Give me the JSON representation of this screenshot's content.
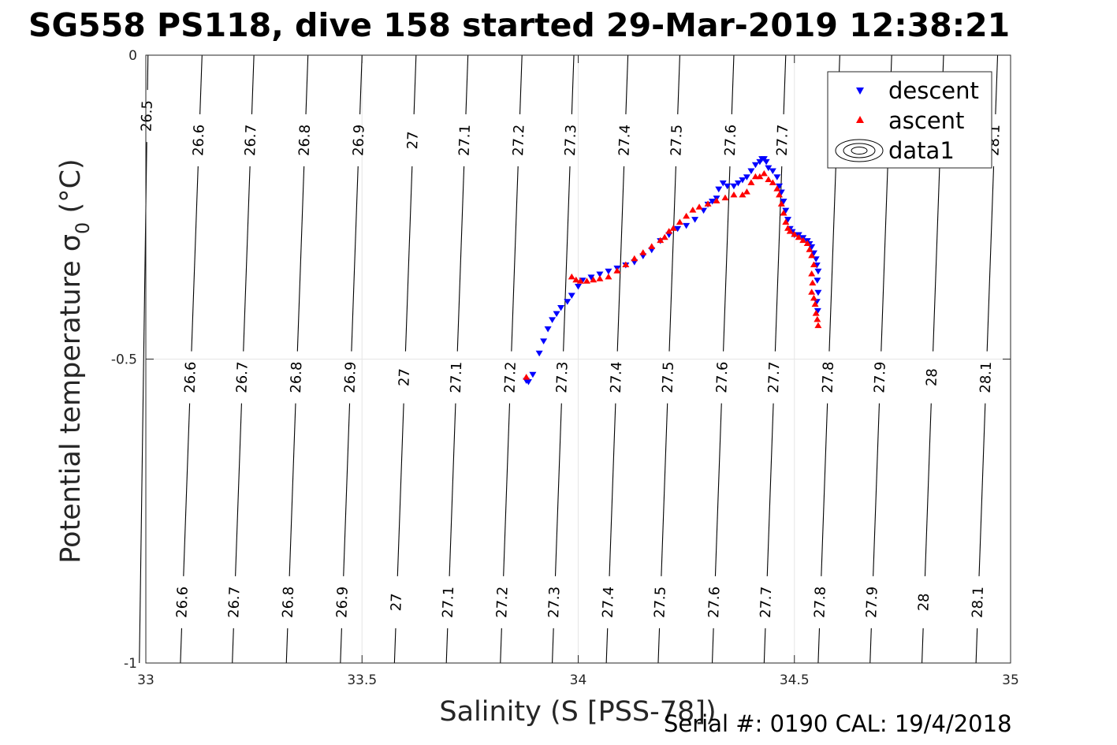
{
  "chart_data": {
    "type": "scatter",
    "title": "SG558 PS118, dive 158 started 29-Mar-2019 12:38:21",
    "xlabel": "Salinity (S [PSS-78])",
    "ylabel_main": "Potential temperature σ",
    "ylabel_sub": "0",
    "ylabel_unit": " (°C)",
    "xlim": [
      33,
      35
    ],
    "ylim": [
      -1,
      0
    ],
    "xticks": [
      33,
      33.5,
      34,
      34.5,
      35
    ],
    "xtick_labels": [
      "33",
      "33.5",
      "34",
      "34.5",
      "35"
    ],
    "yticks": [
      0,
      -0.5,
      -1
    ],
    "ytick_labels": [
      "0",
      "-0.5",
      "-1"
    ],
    "grid": true,
    "legend_position": "top-right",
    "legend": [
      {
        "label": "descent",
        "marker": "triangle-down",
        "color": "#0000ff"
      },
      {
        "label": "ascent",
        "marker": "triangle-up",
        "color": "#ff0000"
      },
      {
        "label": "data1",
        "marker": "contour"
      }
    ],
    "contours": [
      {
        "level": "26.5",
        "s_top": 33.005,
        "s_bottom": 32.985,
        "labels_y": [
          -0.1
        ]
      },
      {
        "level": "26.6",
        "s_top": 33.13,
        "s_bottom": 33.08,
        "labels_y": [
          -0.14,
          -0.53,
          -0.9
        ]
      },
      {
        "level": "26.7",
        "s_top": 33.25,
        "s_bottom": 33.2,
        "labels_y": [
          -0.14,
          -0.53,
          -0.9
        ]
      },
      {
        "level": "26.8",
        "s_top": 33.375,
        "s_bottom": 33.325,
        "labels_y": [
          -0.14,
          -0.53,
          -0.9
        ]
      },
      {
        "level": "26.9",
        "s_top": 33.5,
        "s_bottom": 33.45,
        "labels_y": [
          -0.14,
          -0.53,
          -0.9
        ]
      },
      {
        "level": "27",
        "s_top": 33.625,
        "s_bottom": 33.575,
        "labels_y": [
          -0.14,
          -0.53,
          -0.9
        ]
      },
      {
        "level": "27.1",
        "s_top": 33.745,
        "s_bottom": 33.695,
        "labels_y": [
          -0.14,
          -0.53,
          -0.9
        ]
      },
      {
        "level": "27.2",
        "s_top": 33.87,
        "s_bottom": 33.82,
        "labels_y": [
          -0.14,
          -0.53,
          -0.9
        ]
      },
      {
        "level": "27.3",
        "s_top": 33.99,
        "s_bottom": 33.94,
        "labels_y": [
          -0.14,
          -0.53,
          -0.9
        ]
      },
      {
        "level": "27.4",
        "s_top": 34.115,
        "s_bottom": 34.065,
        "labels_y": [
          -0.14,
          -0.53,
          -0.9
        ]
      },
      {
        "level": "27.5",
        "s_top": 34.235,
        "s_bottom": 34.185,
        "labels_y": [
          -0.14,
          -0.53,
          -0.9
        ]
      },
      {
        "level": "27.6",
        "s_top": 34.36,
        "s_bottom": 34.31,
        "labels_y": [
          -0.14,
          -0.53,
          -0.9
        ]
      },
      {
        "level": "27.7",
        "s_top": 34.48,
        "s_bottom": 34.43,
        "labels_y": [
          -0.14,
          -0.53,
          -0.9
        ]
      },
      {
        "level": "27.8",
        "s_top": 34.605,
        "s_bottom": 34.555,
        "labels_y": [
          -0.53,
          -0.9
        ]
      },
      {
        "level": "27.9",
        "s_top": 34.725,
        "s_bottom": 34.675,
        "labels_y": [
          -0.53,
          -0.9
        ]
      },
      {
        "level": "28",
        "s_top": 34.845,
        "s_bottom": 34.795,
        "labels_y": [
          -0.53,
          -0.9
        ]
      },
      {
        "level": "28.1",
        "s_top": 34.97,
        "s_bottom": 34.92,
        "labels_y": [
          -0.14,
          -0.53,
          -0.9
        ]
      }
    ],
    "series": [
      {
        "name": "descent",
        "color": "#0000ff",
        "marker": "triangle-down",
        "points": [
          [
            33.88,
            -0.535
          ],
          [
            33.885,
            -0.537
          ],
          [
            33.895,
            -0.525
          ],
          [
            33.91,
            -0.49
          ],
          [
            33.92,
            -0.47
          ],
          [
            33.93,
            -0.45
          ],
          [
            33.94,
            -0.435
          ],
          [
            33.95,
            -0.425
          ],
          [
            33.96,
            -0.415
          ],
          [
            33.975,
            -0.405
          ],
          [
            33.985,
            -0.395
          ],
          [
            34.0,
            -0.38
          ],
          [
            34.01,
            -0.37
          ],
          [
            34.03,
            -0.365
          ],
          [
            34.05,
            -0.36
          ],
          [
            34.07,
            -0.355
          ],
          [
            34.09,
            -0.35
          ],
          [
            34.11,
            -0.345
          ],
          [
            34.13,
            -0.34
          ],
          [
            34.15,
            -0.33
          ],
          [
            34.17,
            -0.32
          ],
          [
            34.19,
            -0.305
          ],
          [
            34.21,
            -0.295
          ],
          [
            34.23,
            -0.285
          ],
          [
            34.25,
            -0.28
          ],
          [
            34.27,
            -0.27
          ],
          [
            34.29,
            -0.255
          ],
          [
            34.3,
            -0.245
          ],
          [
            34.31,
            -0.24
          ],
          [
            34.32,
            -0.235
          ],
          [
            34.325,
            -0.22
          ],
          [
            34.335,
            -0.21
          ],
          [
            34.345,
            -0.215
          ],
          [
            34.36,
            -0.215
          ],
          [
            34.37,
            -0.21
          ],
          [
            34.38,
            -0.205
          ],
          [
            34.39,
            -0.2
          ],
          [
            34.4,
            -0.19
          ],
          [
            34.41,
            -0.18
          ],
          [
            34.42,
            -0.175
          ],
          [
            34.425,
            -0.17
          ],
          [
            34.43,
            -0.17
          ],
          [
            34.435,
            -0.175
          ],
          [
            34.44,
            -0.185
          ],
          [
            34.45,
            -0.19
          ],
          [
            34.46,
            -0.2
          ],
          [
            34.465,
            -0.215
          ],
          [
            34.47,
            -0.225
          ],
          [
            34.475,
            -0.24
          ],
          [
            34.48,
            -0.255
          ],
          [
            34.485,
            -0.27
          ],
          [
            34.49,
            -0.285
          ],
          [
            34.495,
            -0.29
          ],
          [
            34.5,
            -0.295
          ],
          [
            34.51,
            -0.295
          ],
          [
            34.52,
            -0.3
          ],
          [
            34.53,
            -0.305
          ],
          [
            34.535,
            -0.31
          ],
          [
            34.54,
            -0.315
          ],
          [
            34.545,
            -0.325
          ],
          [
            34.55,
            -0.335
          ],
          [
            34.552,
            -0.345
          ],
          [
            34.555,
            -0.355
          ],
          [
            34.553,
            -0.37
          ],
          [
            34.555,
            -0.39
          ],
          [
            34.552,
            -0.405
          ],
          [
            34.554,
            -0.42
          ]
        ]
      },
      {
        "name": "ascent",
        "color": "#ff0000",
        "marker": "triangle-up",
        "points": [
          [
            33.88,
            -0.53
          ],
          [
            33.985,
            -0.365
          ],
          [
            33.995,
            -0.37
          ],
          [
            34.005,
            -0.372
          ],
          [
            34.02,
            -0.372
          ],
          [
            34.035,
            -0.37
          ],
          [
            34.05,
            -0.368
          ],
          [
            34.07,
            -0.365
          ],
          [
            34.09,
            -0.355
          ],
          [
            34.11,
            -0.345
          ],
          [
            34.13,
            -0.335
          ],
          [
            34.15,
            -0.325
          ],
          [
            34.17,
            -0.315
          ],
          [
            34.19,
            -0.305
          ],
          [
            34.2,
            -0.3
          ],
          [
            34.21,
            -0.29
          ],
          [
            34.22,
            -0.285
          ],
          [
            34.235,
            -0.275
          ],
          [
            34.25,
            -0.265
          ],
          [
            34.265,
            -0.255
          ],
          [
            34.28,
            -0.25
          ],
          [
            34.3,
            -0.245
          ],
          [
            34.32,
            -0.24
          ],
          [
            34.34,
            -0.235
          ],
          [
            34.36,
            -0.23
          ],
          [
            34.38,
            -0.23
          ],
          [
            34.39,
            -0.225
          ],
          [
            34.4,
            -0.21
          ],
          [
            34.41,
            -0.2
          ],
          [
            34.42,
            -0.2
          ],
          [
            34.43,
            -0.195
          ],
          [
            34.44,
            -0.205
          ],
          [
            34.45,
            -0.21
          ],
          [
            34.46,
            -0.22
          ],
          [
            34.465,
            -0.23
          ],
          [
            34.47,
            -0.245
          ],
          [
            34.475,
            -0.26
          ],
          [
            34.48,
            -0.275
          ],
          [
            34.485,
            -0.285
          ],
          [
            34.49,
            -0.29
          ],
          [
            34.5,
            -0.295
          ],
          [
            34.51,
            -0.3
          ],
          [
            34.52,
            -0.305
          ],
          [
            34.53,
            -0.31
          ],
          [
            34.535,
            -0.32
          ],
          [
            34.54,
            -0.33
          ],
          [
            34.545,
            -0.345
          ],
          [
            34.54,
            -0.36
          ],
          [
            34.542,
            -0.375
          ],
          [
            34.54,
            -0.39
          ],
          [
            34.545,
            -0.4
          ],
          [
            34.548,
            -0.41
          ],
          [
            34.55,
            -0.425
          ],
          [
            34.553,
            -0.435
          ],
          [
            34.555,
            -0.445
          ]
        ]
      }
    ]
  },
  "footer": {
    "serial_text": "Serial #: 0190  CAL: 19/4/2018"
  },
  "colors": {
    "descent": "#0000ff",
    "ascent": "#ff0000",
    "grid": "#e6e6e6",
    "axis": "#262626"
  }
}
